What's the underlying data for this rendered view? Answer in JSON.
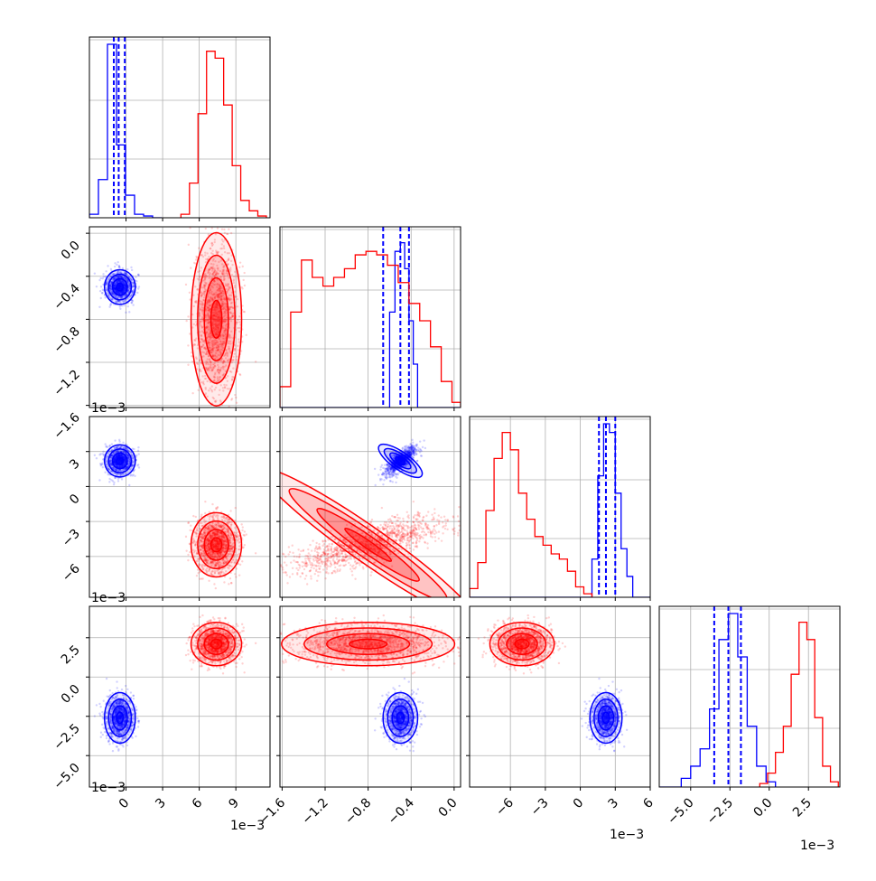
{
  "chart_data": {
    "type": "corner",
    "grid": true,
    "colors": {
      "blue": "#0000ff",
      "red": "#ff0000",
      "grid": "#b0b0b0",
      "axes": "#000000"
    },
    "exponent_label": "1e−3",
    "parameters": [
      {
        "range": [
          -3.0,
          11.8
        ],
        "ticks": [
          0,
          3,
          6,
          9
        ],
        "tick_labels": [
          "0",
          "3",
          "6",
          "9"
        ],
        "exponent_label": "1e−3"
      },
      {
        "range": [
          -1.62,
          0.06
        ],
        "ticks": [
          0.0,
          -0.4,
          -0.8,
          -1.2,
          -1.6
        ],
        "tick_labels": [
          "0.0",
          "−0.4",
          "−0.8",
          "−1.2",
          "−1.6"
        ],
        "exponent_label": "1e−3"
      },
      {
        "range": [
          -9.5,
          6.0
        ],
        "ticks": [
          3,
          0,
          -3,
          -6
        ],
        "tick_labels": [
          "3",
          "0",
          "−3",
          "−6"
        ],
        "x_ticks": [
          -6,
          -3,
          0,
          3,
          6
        ],
        "x_tick_labels": [
          "−6",
          "−3",
          "0",
          "3",
          "6"
        ],
        "exponent_label": "1e−3"
      },
      {
        "range": [
          -7.0,
          4.5
        ],
        "ticks": [
          2.5,
          0.0,
          -2.5,
          -5.0
        ],
        "tick_labels": [
          "2.5",
          "0.0",
          "−2.5",
          "−5.0"
        ],
        "exponent_label": "1e−3"
      }
    ],
    "series": [
      {
        "color": "#0000ff",
        "means": [
          -0.5,
          -0.5,
          2.2,
          -2.6
        ],
        "sds": [
          0.55,
          0.07,
          0.6,
          0.7
        ],
        "quantiles": [
          [
            -1.0,
            -0.6,
            -0.1
          ],
          [
            -0.66,
            -0.5,
            -0.42
          ],
          [
            1.6,
            2.2,
            3.0
          ],
          [
            -3.5,
            -2.6,
            -1.8
          ]
        ],
        "hist": [
          {
            "edges": [
              -3.0,
              -2.26,
              -1.52,
              -0.78,
              -0.04,
              0.7,
              1.44,
              2.18,
              2.92
            ],
            "counts": [
              0.02,
              0.22,
              1.0,
              0.42,
              0.13,
              0.02,
              0.01,
              0.0
            ]
          },
          {
            "edges": [
              -1.62,
              -0.6,
              -0.55,
              -0.5,
              -0.46,
              -0.42,
              -0.38,
              -0.34,
              0.06
            ],
            "counts": [
              0.0,
              0.55,
              0.9,
              0.95,
              0.8,
              0.5,
              0.25,
              0.0
            ]
          },
          {
            "edges": [
              -9.5,
              1.0,
              1.5,
              2.0,
              2.5,
              3.0,
              3.5,
              4.0,
              4.5,
              6.0
            ],
            "counts": [
              0.0,
              0.22,
              0.7,
              1.0,
              0.95,
              0.6,
              0.28,
              0.12,
              0.0
            ]
          },
          {
            "edges": [
              -7.0,
              -5.6,
              -5.0,
              -4.4,
              -3.8,
              -3.2,
              -2.6,
              -2.0,
              -1.4,
              -0.8,
              -0.2,
              0.4
            ],
            "counts": [
              0.0,
              0.05,
              0.12,
              0.22,
              0.45,
              0.85,
              1.0,
              0.75,
              0.35,
              0.12,
              0.03
            ]
          }
        ]
      },
      {
        "color": "#ff0000",
        "means": [
          7.4,
          -0.8,
          -5.0,
          2.1
        ],
        "sds": [
          0.9,
          0.35,
          1.2,
          0.6
        ],
        "hist": [
          {
            "edges": [
              4.5,
              5.2,
              5.9,
              6.6,
              7.3,
              8.0,
              8.7,
              9.4,
              10.1,
              10.8,
              11.5
            ],
            "counts": [
              0.02,
              0.2,
              0.6,
              0.96,
              0.92,
              0.65,
              0.3,
              0.1,
              0.04,
              0.01
            ]
          },
          {
            "edges": [
              -1.62,
              -1.52,
              -1.42,
              -1.32,
              -1.22,
              -1.12,
              -1.02,
              -0.92,
              -0.82,
              -0.72,
              -0.62,
              -0.52,
              -0.42,
              -0.32,
              -0.22,
              -0.12,
              -0.02,
              0.06
            ],
            "counts": [
              0.12,
              0.55,
              0.85,
              0.75,
              0.7,
              0.75,
              0.8,
              0.88,
              0.9,
              0.88,
              0.82,
              0.72,
              0.6,
              0.5,
              0.35,
              0.15,
              0.03
            ]
          },
          {
            "edges": [
              -9.5,
              -8.8,
              -8.1,
              -7.4,
              -6.7,
              -6.0,
              -5.3,
              -4.6,
              -3.9,
              -3.2,
              -2.5,
              -1.8,
              -1.1,
              -0.4,
              0.3,
              1.0
            ],
            "counts": [
              0.05,
              0.2,
              0.5,
              0.8,
              0.95,
              0.85,
              0.6,
              0.45,
              0.35,
              0.3,
              0.25,
              0.22,
              0.15,
              0.06,
              0.02
            ]
          },
          {
            "edges": [
              -0.6,
              -0.1,
              0.4,
              0.9,
              1.4,
              1.9,
              2.4,
              2.9,
              3.4,
              3.9,
              4.4
            ],
            "counts": [
              0.02,
              0.08,
              0.2,
              0.35,
              0.65,
              0.95,
              0.85,
              0.4,
              0.12,
              0.03
            ]
          }
        ]
      }
    ]
  }
}
